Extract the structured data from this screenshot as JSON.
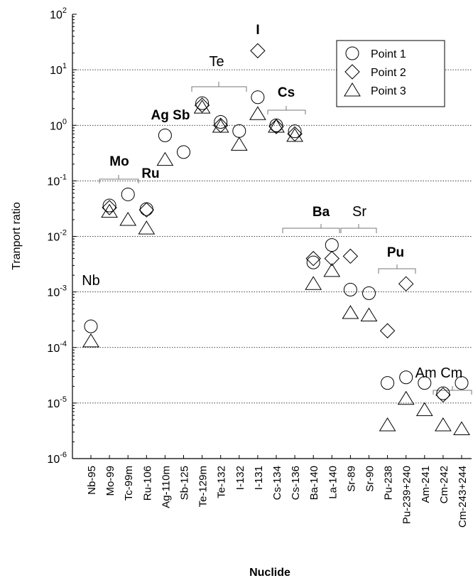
{
  "chart_data": {
    "type": "scatter",
    "x_label": "Nuclide",
    "y_label": "Tranport ratio",
    "log_y": true,
    "grid": true,
    "legend_position": "upper right",
    "categories": [
      "Nb-95",
      "Mo-99",
      "Tc-99m",
      "Ru-106",
      "Ag-110m",
      "Sb-125",
      "Te-129m",
      "Te-132",
      "I-132",
      "I-131",
      "Cs-134",
      "Cs-136",
      "Ba-140",
      "La-140",
      "Sr-89",
      "Sr-90",
      "Pu-238",
      "Pu-239+240",
      "Am-241",
      "Cm-242",
      "Cm-243+244"
    ],
    "ylim": [
      1e-06,
      100
    ],
    "yticks": [
      {
        "value": 1e-06,
        "label": "10",
        "exponent": "-6"
      },
      {
        "value": 1e-05,
        "label": "10",
        "exponent": "-5"
      },
      {
        "value": 0.0001,
        "label": "10",
        "exponent": "-4"
      },
      {
        "value": 0.001,
        "label": "10",
        "exponent": "-3"
      },
      {
        "value": 0.01,
        "label": "10",
        "exponent": "-2"
      },
      {
        "value": 0.1,
        "label": "10",
        "exponent": "-1"
      },
      {
        "value": 1,
        "label": "10",
        "exponent": "0"
      },
      {
        "value": 10,
        "label": "10",
        "exponent": "1"
      },
      {
        "value": 100,
        "label": "10",
        "exponent": "2"
      }
    ],
    "series": [
      {
        "name": "Point 1",
        "marker": "circle",
        "color": "#000000",
        "values": [
          0.00024,
          0.036,
          0.057,
          0.031,
          0.66,
          0.33,
          2.5,
          1.15,
          0.79,
          3.2,
          1.0,
          0.78,
          0.0034,
          0.007,
          0.0011,
          0.00095,
          2.3e-05,
          2.9e-05,
          2.3e-05,
          1.5e-05,
          2.3e-05
        ]
      },
      {
        "name": "Point 2",
        "marker": "diamond",
        "color": "#000000",
        "values": [
          null,
          0.033,
          null,
          0.03,
          null,
          null,
          2.3,
          1.0,
          null,
          22,
          0.95,
          0.7,
          0.004,
          0.004,
          0.0044,
          null,
          0.0002,
          0.0014,
          null,
          1.4e-05,
          null
        ]
      },
      {
        "name": "Point 3",
        "marker": "triangle",
        "color": "#000000",
        "values": [
          0.00013,
          0.028,
          0.02,
          0.014,
          0.24,
          null,
          2.1,
          0.95,
          0.45,
          1.6,
          0.95,
          0.65,
          0.0014,
          0.0024,
          0.00042,
          0.00038,
          4e-06,
          1.2e-05,
          7.5e-06,
          4e-06,
          3.4e-06
        ]
      }
    ],
    "annotations": [
      {
        "text": "Nb",
        "bold": false
      },
      {
        "text": "Mo",
        "bold": true
      },
      {
        "text": "Ru",
        "bold": true
      },
      {
        "text": "Ag Sb",
        "bold": true
      },
      {
        "text": "Te",
        "bold": false
      },
      {
        "text": "I",
        "bold": true
      },
      {
        "text": "Cs",
        "bold": true
      },
      {
        "text": "Ba",
        "bold": true
      },
      {
        "text": "Sr",
        "bold": false
      },
      {
        "text": "Pu",
        "bold": true
      },
      {
        "text": "Am Cm",
        "bold": false
      }
    ]
  }
}
